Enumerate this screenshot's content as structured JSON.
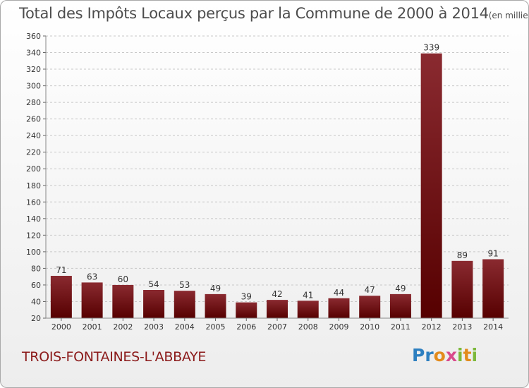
{
  "header": {
    "title": "Total des Impôts Locaux perçus par la Commune de 2000 à 2014",
    "unit": "(en milliers d'€)"
  },
  "footer": {
    "commune": "TROIS-FONTAINES-L'ABBAYE",
    "logo": "Proxiti"
  },
  "colors": {
    "bar_top": "#8a2a30",
    "bar_bottom": "#560000",
    "title": "#4d4d4d",
    "commune": "#8b1a1a"
  },
  "chart_data": {
    "type": "bar",
    "title": "Total des Impôts Locaux perçus par la Commune de 2000 à 2014",
    "xlabel": "",
    "ylabel": "",
    "categories": [
      "2000",
      "2001",
      "2002",
      "2003",
      "2004",
      "2005",
      "2006",
      "2007",
      "2008",
      "2009",
      "2010",
      "2011",
      "2012",
      "2013",
      "2014"
    ],
    "values": [
      71,
      63,
      60,
      54,
      53,
      49,
      39,
      42,
      41,
      44,
      47,
      49,
      339,
      89,
      91
    ],
    "ylim": [
      20,
      360
    ],
    "yticks": [
      20,
      40,
      60,
      80,
      100,
      120,
      140,
      160,
      180,
      200,
      220,
      240,
      260,
      280,
      300,
      320,
      340,
      360
    ],
    "grid": true,
    "legend": "none"
  }
}
